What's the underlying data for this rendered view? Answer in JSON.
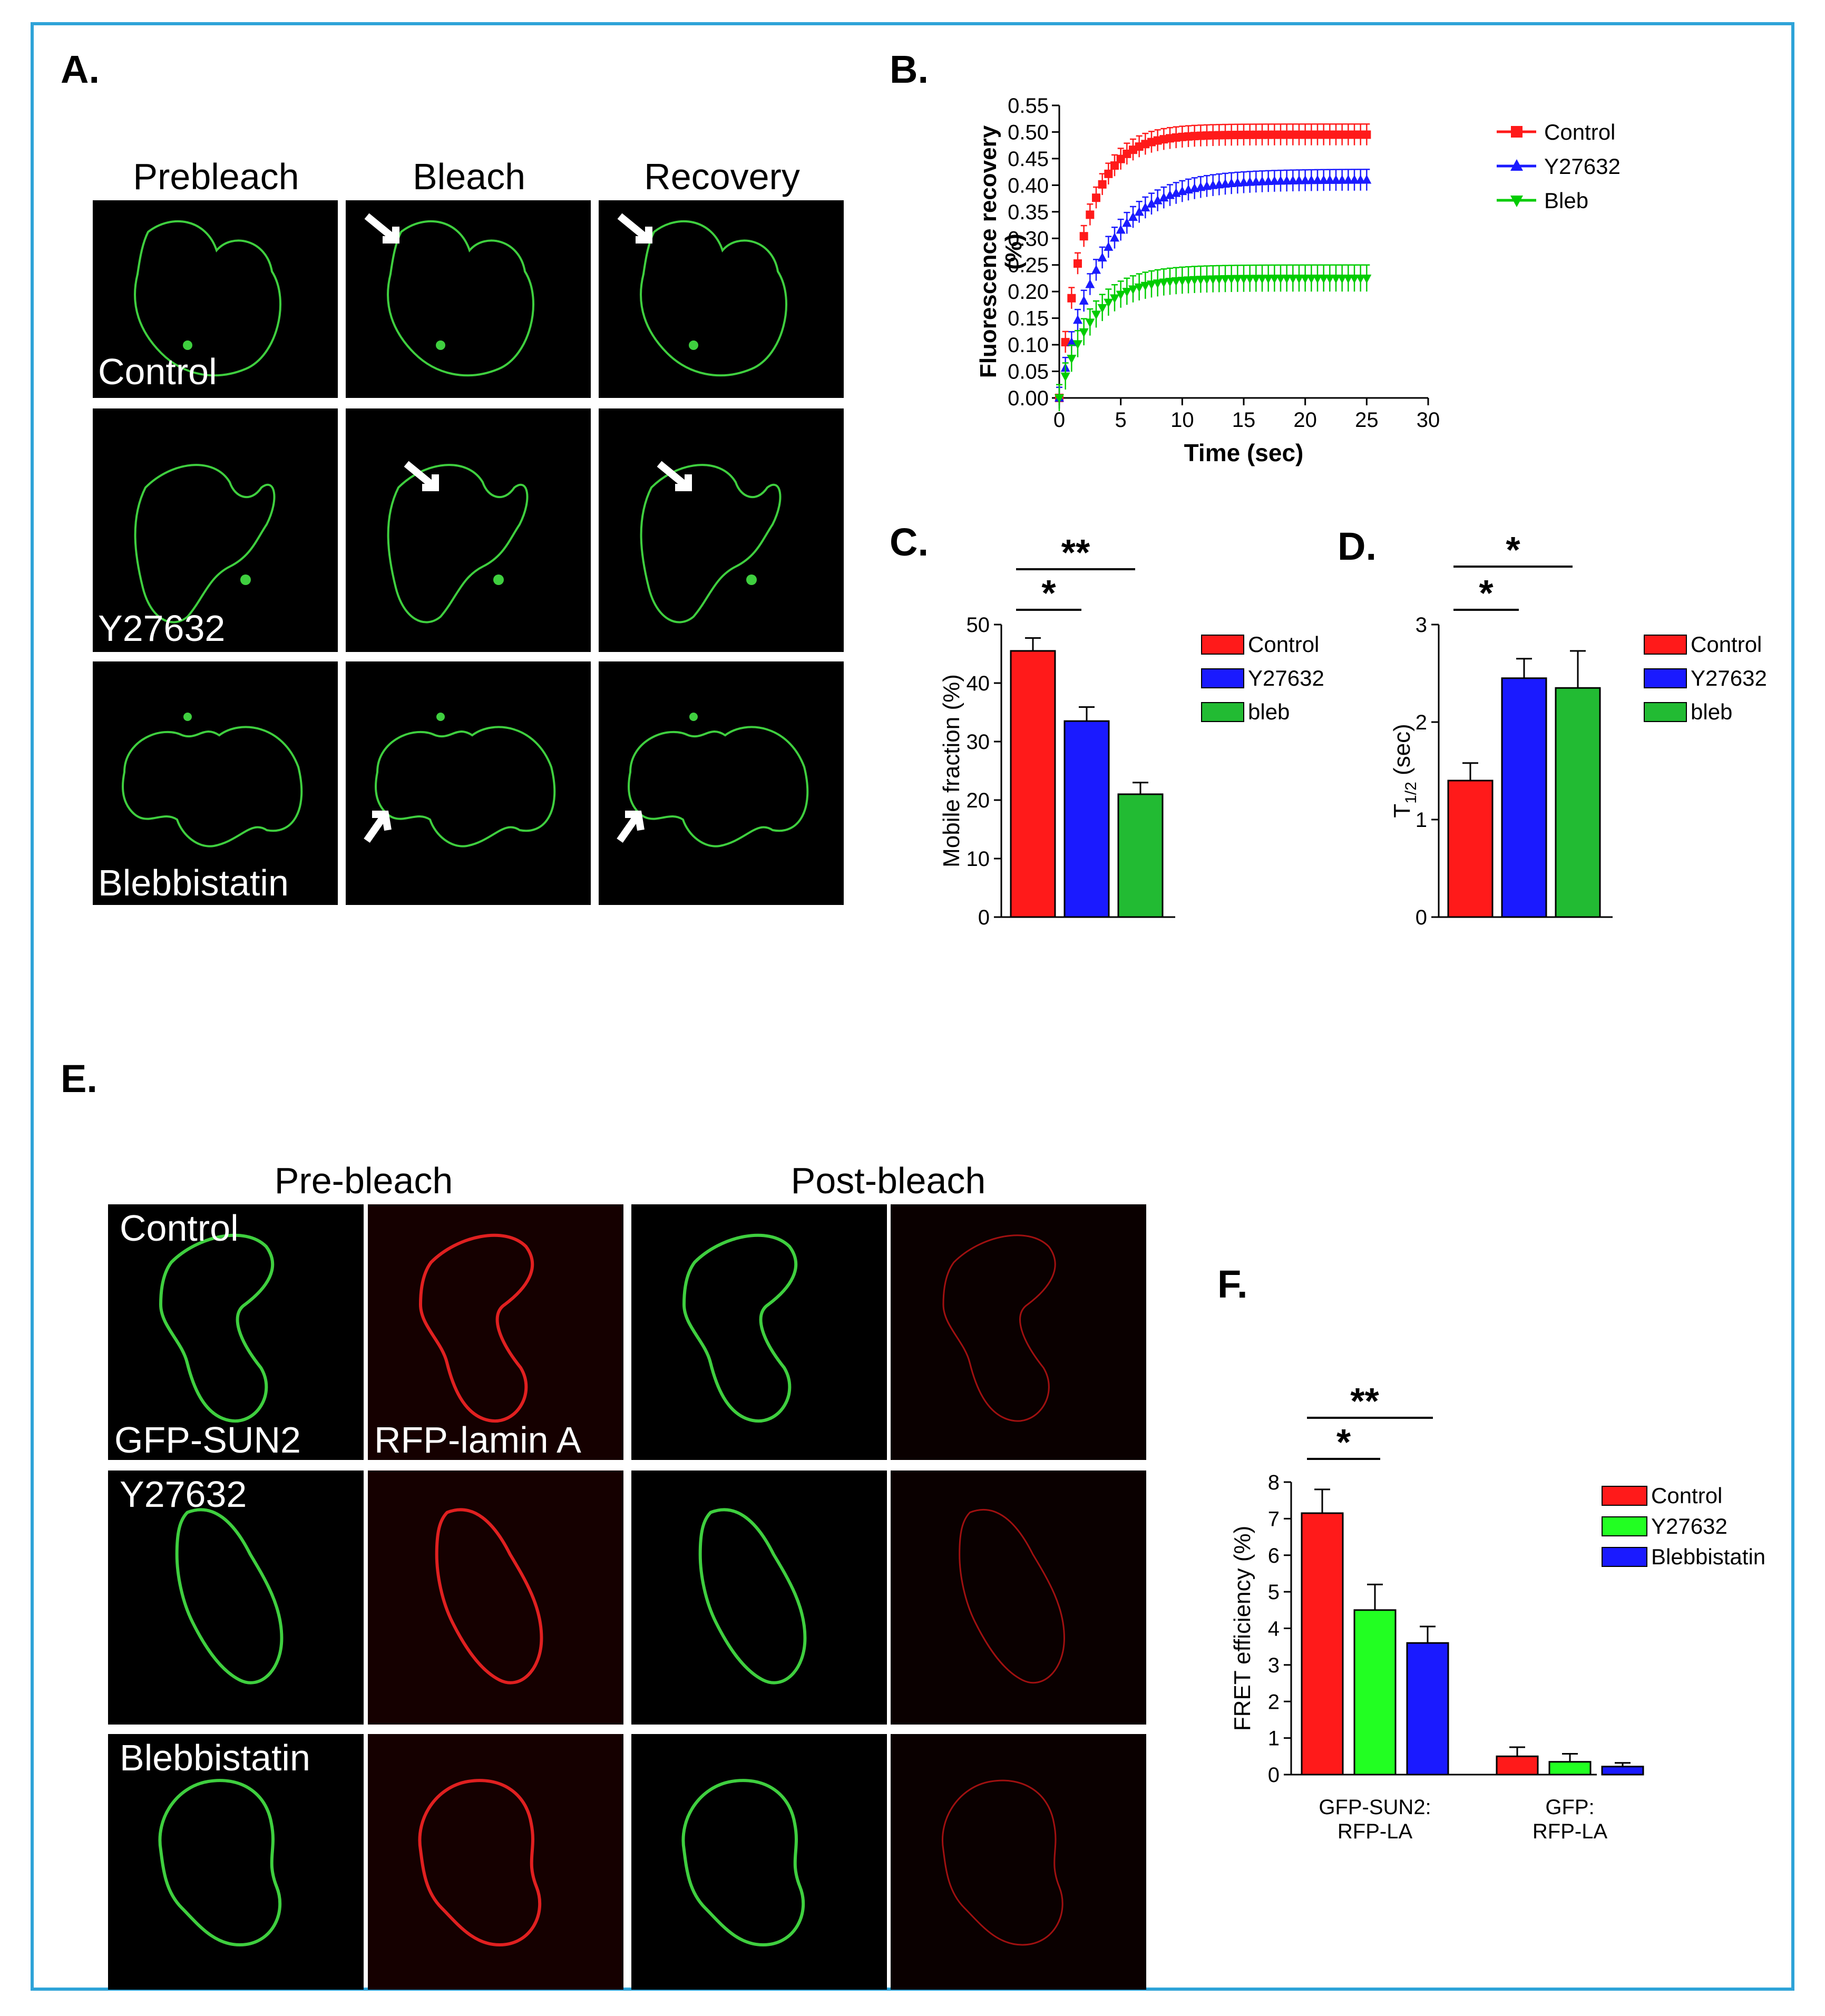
{
  "figure": {
    "panel_labels": {
      "a": "A.",
      "b": "B.",
      "c": "C.",
      "d": "D.",
      "e": "E.",
      "f": "F."
    },
    "panel_a": {
      "columns": [
        "Prebleach",
        "Bleach",
        "Recovery"
      ],
      "rows": [
        "Control",
        "Y27632",
        "Blebbistatin"
      ]
    },
    "panel_e": {
      "group_headings": [
        "Pre-bleach",
        "Post-bleach"
      ],
      "rows": [
        "Control",
        "Y27632",
        "Blebbistatin"
      ],
      "channel_labels": [
        "GFP-SUN2",
        "RFP-lamin A"
      ]
    }
  },
  "colors": {
    "frame": "#2ea3d8",
    "red": "#ff1a1a",
    "blue": "#1a1aff",
    "green_b": "#00cc00",
    "green_bar": "#22bb33",
    "lime_bar": "#22ff22",
    "nuclear_green": "#3fcf3f",
    "nuclear_red": "#e02020"
  },
  "chart_data": [
    {
      "id": "B",
      "type": "line",
      "xlabel": "Time (sec)",
      "ylabel": "Fluorescence recovery (%)",
      "xlim": [
        0,
        30
      ],
      "ylim": [
        0,
        0.55
      ],
      "xticks": [
        "0",
        "5",
        "10",
        "15",
        "20",
        "25",
        "30"
      ],
      "yticks": [
        "0.00",
        "0.05",
        "0.10",
        "0.15",
        "0.20",
        "0.25",
        "0.30",
        "0.35",
        "0.40",
        "0.45",
        "0.50",
        "0.55"
      ],
      "legend_position": "right",
      "series": [
        {
          "name": "Control",
          "color": "#ff1a1a",
          "marker": "square",
          "plateau": 0.495,
          "tau": 2.1,
          "error": 0.02
        },
        {
          "name": "Y27632",
          "color": "#1a1aff",
          "marker": "triangle-up",
          "plateau": 0.41,
          "tau": 3.4,
          "error": 0.02
        },
        {
          "name": "Bleb",
          "color": "#00cc00",
          "marker": "triangle-down",
          "plateau": 0.225,
          "tau": 2.5,
          "error": 0.025
        }
      ],
      "x_range_data": [
        0,
        25
      ]
    },
    {
      "id": "C",
      "type": "bar",
      "ylabel": "Mobile fraction (%)",
      "ylim": [
        0,
        50
      ],
      "yticks": [
        "0",
        "10",
        "20",
        "30",
        "40",
        "50"
      ],
      "series": [
        {
          "name": "Control",
          "value": 45.5,
          "error": 2.2,
          "color": "#ff1a1a"
        },
        {
          "name": "Y27632",
          "value": 33.5,
          "error": 2.4,
          "color": "#1a1aff"
        },
        {
          "name": "bleb",
          "value": 21.0,
          "error": 2.0,
          "color": "#22bb33"
        }
      ],
      "significance": [
        {
          "label": "*",
          "from": 0,
          "to": 1
        },
        {
          "label": "**",
          "from": 0,
          "to": 2
        }
      ],
      "legend_position": "right"
    },
    {
      "id": "D",
      "type": "bar",
      "ylabel": "T",
      "ylabel_subscript": "1/2",
      "ylabel_unit": "(sec)",
      "ylim": [
        0,
        3
      ],
      "yticks": [
        "0",
        "1",
        "2",
        "3"
      ],
      "series": [
        {
          "name": "Control",
          "value": 1.4,
          "error": 0.18,
          "color": "#ff1a1a"
        },
        {
          "name": "Y27632",
          "value": 2.45,
          "error": 0.2,
          "color": "#1a1aff"
        },
        {
          "name": "bleb",
          "value": 2.35,
          "error": 0.38,
          "color": "#22bb33"
        }
      ],
      "significance": [
        {
          "label": "*",
          "from": 0,
          "to": 1
        },
        {
          "label": "*",
          "from": 0,
          "to": 2
        }
      ],
      "legend_position": "right"
    },
    {
      "id": "F",
      "type": "bar",
      "ylabel": "FRET efficiency (%)",
      "ylim": [
        0,
        8
      ],
      "yticks": [
        "0",
        "1",
        "2",
        "3",
        "4",
        "5",
        "6",
        "7",
        "8"
      ],
      "groups": [
        "GFP-SUN2:\nRFP-LA",
        "GFP:\nRFP-LA"
      ],
      "series": [
        {
          "name": "Control",
          "color": "#ff1a1a",
          "values": [
            7.15,
            0.5
          ],
          "errors": [
            0.65,
            0.25
          ]
        },
        {
          "name": "Y27632",
          "color": "#22ff22",
          "values": [
            4.5,
            0.35
          ],
          "errors": [
            0.7,
            0.22
          ]
        },
        {
          "name": "Blebbistatin",
          "color": "#1a1aff",
          "values": [
            3.6,
            0.22
          ],
          "errors": [
            0.45,
            0.1
          ]
        }
      ],
      "significance": [
        {
          "label": "*",
          "from": 0,
          "to": 1
        },
        {
          "label": "**",
          "from": 0,
          "to": 2
        }
      ],
      "legend_position": "right"
    }
  ]
}
